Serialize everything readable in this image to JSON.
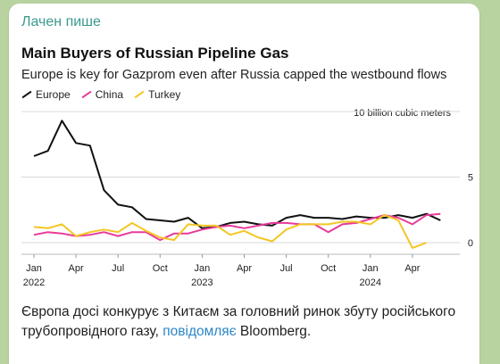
{
  "message": {
    "sender": "Лачен пише",
    "caption": {
      "before": "Європа досі конкурує з Китаєм за головний ринок збуту російського трубопровідного газу, ",
      "link": "повідомляє",
      "after": " Bloomberg."
    }
  },
  "colors": {
    "Europe": "#111111",
    "China": "#e83a9b",
    "Turkey": "#f4c623"
  },
  "chart_data": {
    "type": "line",
    "title": "Main Buyers of Russian Pipeline Gas",
    "subtitle": "Europe is key for Gazprom even after Russia capped the westbound flows",
    "unit_label": "10 billion cubic meters",
    "ylim": [
      0,
      10
    ],
    "y_ticks": [
      "0",
      "5"
    ],
    "x_tick_labels": [
      "Jan",
      "Apr",
      "Jul",
      "Oct",
      "Jan",
      "Apr",
      "Jul",
      "Oct",
      "Jan",
      "Apr"
    ],
    "x_year_labels": [
      "2022",
      "2023",
      "2024"
    ],
    "x": [
      "2022-01",
      "2022-02",
      "2022-03",
      "2022-04",
      "2022-05",
      "2022-06",
      "2022-07",
      "2022-08",
      "2022-09",
      "2022-10",
      "2022-11",
      "2022-12",
      "2023-01",
      "2023-02",
      "2023-03",
      "2023-04",
      "2023-05",
      "2023-06",
      "2023-07",
      "2023-08",
      "2023-09",
      "2023-10",
      "2023-11",
      "2023-12",
      "2024-01",
      "2024-02",
      "2024-03",
      "2024-04",
      "2024-05",
      "2024-06"
    ],
    "series": [
      {
        "name": "Europe",
        "values": [
          6.6,
          7.0,
          9.3,
          7.6,
          7.4,
          4.0,
          2.9,
          2.7,
          1.8,
          1.7,
          1.6,
          1.9,
          1.1,
          1.2,
          1.5,
          1.6,
          1.4,
          1.3,
          1.9,
          2.1,
          1.9,
          1.9,
          1.8,
          2.0,
          1.9,
          1.9,
          2.1,
          1.9,
          2.2,
          1.7
        ]
      },
      {
        "name": "China",
        "values": [
          0.6,
          0.8,
          0.7,
          0.5,
          0.6,
          0.8,
          0.5,
          0.8,
          0.8,
          0.2,
          0.7,
          0.7,
          1.0,
          1.2,
          1.3,
          1.1,
          1.3,
          1.5,
          1.5,
          1.4,
          1.4,
          0.8,
          1.4,
          1.5,
          1.8,
          2.1,
          1.9,
          1.4,
          2.1,
          2.2
        ]
      },
      {
        "name": "Turkey",
        "values": [
          1.2,
          1.1,
          1.4,
          0.5,
          0.8,
          1.0,
          0.8,
          1.5,
          0.9,
          0.4,
          0.2,
          1.4,
          1.3,
          1.3,
          0.6,
          0.9,
          0.4,
          0.1,
          1.0,
          1.4,
          1.4,
          1.4,
          1.6,
          1.6,
          1.4,
          2.1,
          1.7,
          -0.4,
          0.0,
          null
        ]
      }
    ]
  }
}
